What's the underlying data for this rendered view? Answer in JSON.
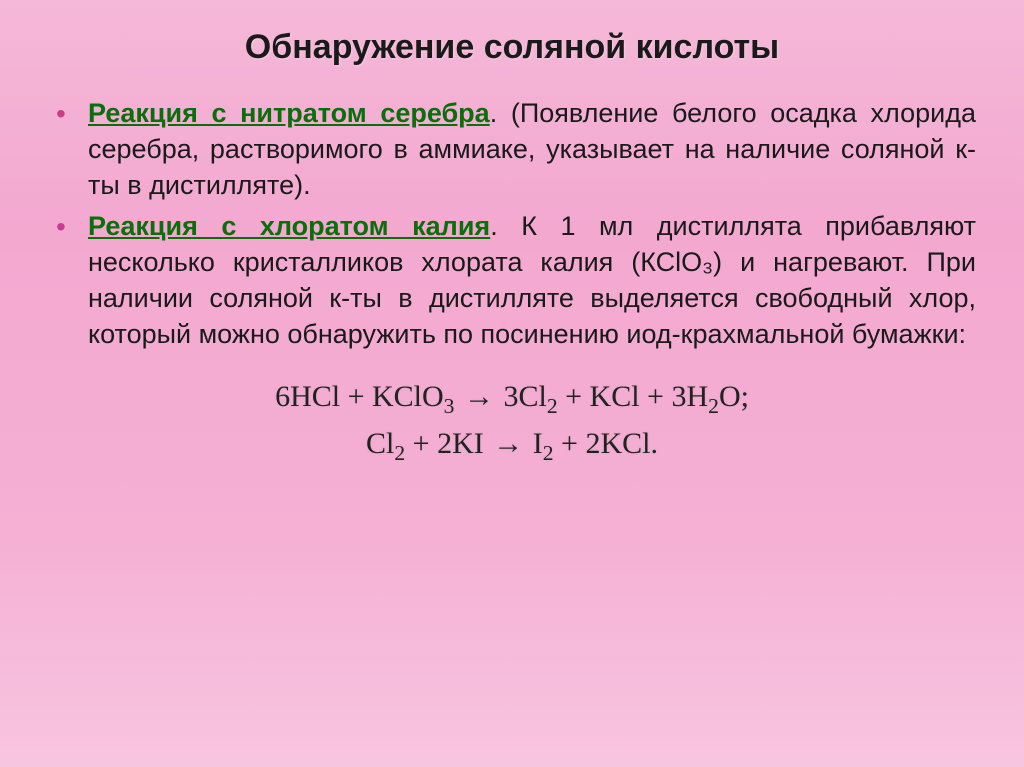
{
  "slide": {
    "title": "Обнаружение соляной кислоты",
    "background_gradient": [
      "#f5b8d8",
      "#f3a8d0",
      "#f5b0d4",
      "#f8c5e0"
    ],
    "title_fontsize": 34,
    "body_fontsize": 27,
    "bullet_color": "#c83c8c",
    "headline_color": "#0a6e0a",
    "text_color": "#1a1a1a"
  },
  "bullets": [
    {
      "headline": "Реакция с нитратом серебра",
      "period": ". ",
      "body": "(Появление белого осадка хлорида серебра, растворимого в аммиаке, указывает на наличие соляной к-ты в дистилляте)."
    },
    {
      "headline": "Реакция с хлоратом калия",
      "period": ". ",
      "body": "К 1 мл дистиллята прибавляют несколько кристалликов хлората калия (КСlO₃) и нагревают. При наличии соляной к-ты в дистилляте выделяется свободный хлор, который можно обнаружить по посинению иод-крахмальной бумажки:"
    }
  ],
  "equations": {
    "font_family": "Times New Roman",
    "fontsize": 30,
    "text_color": "#222",
    "lines": [
      "6HCl + KClO₃ → 3Cl₂ + KCl + 3H₂O;",
      "Cl₂ + 2KI → I₂ + 2KCl."
    ]
  }
}
